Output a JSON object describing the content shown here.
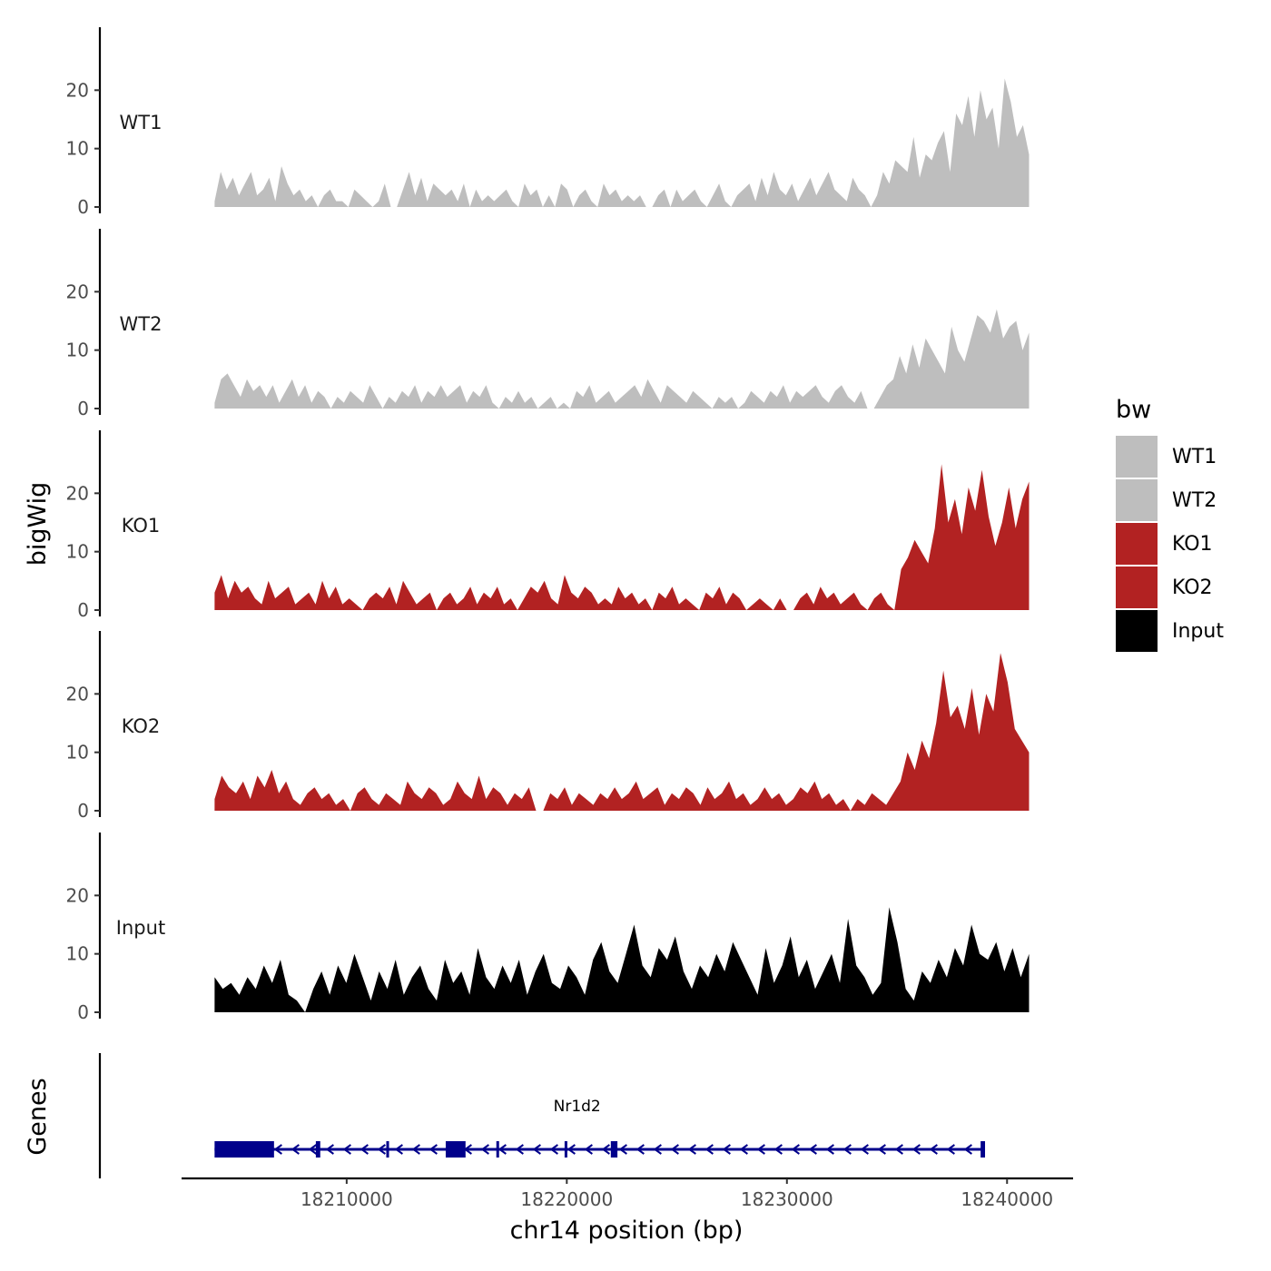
{
  "chart_data": {
    "type": "area",
    "description_free": true,
    "y_axis_title": "bigWig",
    "x_axis_title": "chr14 position (bp)",
    "x_range": [
      18202500,
      18243000
    ],
    "y_range": [
      0,
      30
    ],
    "y_ticks": [
      "0",
      "10",
      "20"
    ],
    "x_ticks": [
      {
        "value": 18210000,
        "label": "18210000"
      },
      {
        "value": 18220000,
        "label": "18220000"
      },
      {
        "value": 18230000,
        "label": "18230000"
      },
      {
        "value": 18240000,
        "label": "18240000"
      }
    ],
    "data_x_start": 18204000,
    "data_x_end": 18241000,
    "legend": {
      "title": "bw",
      "entries": [
        {
          "label": "WT1",
          "color": "#bebebe"
        },
        {
          "label": "WT2",
          "color": "#bebebe"
        },
        {
          "label": "KO1",
          "color": "#b22222"
        },
        {
          "label": "KO2",
          "color": "#b22222"
        },
        {
          "label": "Input",
          "color": "#000000"
        }
      ]
    },
    "series": [
      {
        "name": "WT1",
        "label": "WT1",
        "color": "#bebebe",
        "values": [
          1,
          6,
          3,
          5,
          2,
          4,
          6,
          2,
          3,
          5,
          1,
          7,
          4,
          2,
          3,
          1,
          2,
          0,
          2,
          3,
          1,
          1,
          0,
          3,
          2,
          1,
          0,
          1,
          4,
          0,
          0,
          3,
          6,
          2,
          5,
          1,
          4,
          3,
          2,
          3,
          1,
          4,
          0,
          3,
          1,
          2,
          1,
          2,
          3,
          1,
          0,
          4,
          2,
          3,
          0,
          2,
          0,
          4,
          3,
          0,
          2,
          3,
          1,
          0,
          4,
          2,
          3,
          1,
          2,
          1,
          2,
          0,
          0,
          2,
          3,
          0,
          3,
          1,
          2,
          3,
          1,
          0,
          2,
          4,
          1,
          0,
          2,
          3,
          4,
          1,
          5,
          2,
          6,
          3,
          2,
          4,
          1,
          3,
          5,
          2,
          4,
          6,
          3,
          2,
          1,
          5,
          3,
          2,
          0,
          2,
          6,
          4,
          8,
          7,
          6,
          12,
          5,
          9,
          8,
          11,
          13,
          6,
          16,
          14,
          19,
          12,
          20,
          15,
          17,
          10,
          22,
          18,
          12,
          14,
          9
        ]
      },
      {
        "name": "WT2",
        "label": "WT2",
        "color": "#bebebe",
        "values": [
          1,
          5,
          6,
          4,
          2,
          5,
          3,
          4,
          2,
          4,
          1,
          3,
          5,
          2,
          4,
          1,
          3,
          2,
          0,
          2,
          1,
          3,
          2,
          1,
          4,
          2,
          0,
          2,
          1,
          3,
          2,
          4,
          1,
          3,
          2,
          4,
          2,
          3,
          4,
          1,
          3,
          2,
          4,
          1,
          0,
          2,
          1,
          3,
          1,
          2,
          0,
          1,
          2,
          0,
          1,
          0,
          3,
          2,
          4,
          1,
          2,
          3,
          1,
          2,
          3,
          4,
          2,
          5,
          3,
          1,
          4,
          3,
          2,
          1,
          3,
          2,
          1,
          0,
          2,
          1,
          2,
          0,
          1,
          3,
          2,
          1,
          3,
          2,
          4,
          1,
          3,
          2,
          3,
          4,
          2,
          1,
          3,
          4,
          2,
          1,
          3,
          0,
          0,
          2,
          4,
          5,
          9,
          6,
          11,
          7,
          12,
          10,
          8,
          6,
          14,
          10,
          8,
          12,
          16,
          15,
          13,
          17,
          12,
          14,
          15,
          10,
          13
        ]
      },
      {
        "name": "KO1",
        "label": "KO1",
        "color": "#b22222",
        "values": [
          3,
          6,
          2,
          5,
          3,
          4,
          2,
          1,
          5,
          2,
          3,
          4,
          1,
          2,
          3,
          1,
          5,
          2,
          4,
          1,
          2,
          1,
          0,
          2,
          3,
          2,
          4,
          1,
          5,
          3,
          1,
          2,
          3,
          0,
          2,
          3,
          1,
          2,
          4,
          1,
          3,
          2,
          4,
          1,
          2,
          0,
          2,
          4,
          3,
          5,
          2,
          1,
          6,
          3,
          2,
          4,
          3,
          1,
          2,
          1,
          4,
          2,
          3,
          1,
          2,
          0,
          3,
          2,
          4,
          1,
          2,
          1,
          0,
          3,
          2,
          4,
          1,
          3,
          2,
          0,
          1,
          2,
          1,
          0,
          2,
          0,
          0,
          2,
          3,
          1,
          4,
          2,
          3,
          1,
          2,
          3,
          1,
          0,
          2,
          3,
          1,
          0,
          7,
          9,
          12,
          10,
          8,
          14,
          25,
          15,
          19,
          13,
          21,
          17,
          24,
          16,
          11,
          15,
          21,
          14,
          19,
          22
        ]
      },
      {
        "name": "KO2",
        "label": "KO2",
        "color": "#b22222",
        "values": [
          2,
          6,
          4,
          3,
          5,
          2,
          6,
          4,
          7,
          3,
          5,
          2,
          1,
          3,
          4,
          2,
          3,
          1,
          2,
          0,
          3,
          4,
          2,
          1,
          3,
          2,
          1,
          5,
          3,
          2,
          4,
          3,
          1,
          2,
          5,
          3,
          2,
          6,
          2,
          4,
          3,
          1,
          3,
          2,
          4,
          0,
          0,
          3,
          2,
          4,
          1,
          3,
          2,
          1,
          3,
          2,
          4,
          2,
          3,
          5,
          2,
          3,
          4,
          1,
          3,
          2,
          4,
          3,
          1,
          4,
          2,
          3,
          5,
          2,
          3,
          1,
          2,
          4,
          2,
          3,
          1,
          2,
          4,
          3,
          5,
          2,
          3,
          1,
          2,
          0,
          2,
          1,
          3,
          2,
          1,
          3,
          5,
          10,
          7,
          12,
          9,
          15,
          24,
          16,
          18,
          14,
          21,
          13,
          20,
          17,
          27,
          22,
          14,
          12,
          10
        ]
      },
      {
        "name": "Input",
        "label": "Input",
        "color": "#000000",
        "values": [
          6,
          4,
          5,
          3,
          6,
          4,
          8,
          5,
          9,
          3,
          2,
          0,
          4,
          7,
          3,
          8,
          5,
          10,
          6,
          2,
          7,
          4,
          9,
          3,
          6,
          8,
          4,
          2,
          9,
          5,
          7,
          3,
          11,
          6,
          4,
          8,
          5,
          9,
          3,
          7,
          10,
          5,
          4,
          8,
          6,
          3,
          9,
          12,
          7,
          5,
          10,
          15,
          8,
          6,
          11,
          9,
          13,
          7,
          4,
          8,
          6,
          10,
          7,
          12,
          9,
          6,
          3,
          11,
          5,
          8,
          13,
          6,
          9,
          4,
          7,
          10,
          5,
          16,
          8,
          6,
          3,
          5,
          18,
          12,
          4,
          2,
          7,
          5,
          9,
          6,
          11,
          8,
          15,
          10,
          9,
          12,
          7,
          11,
          6,
          10
        ]
      }
    ],
    "genes": {
      "panel_title": "Genes",
      "items": [
        {
          "name": "Nr1d2",
          "start": 18204000,
          "end": 18239000,
          "strand": "-",
          "exons": [
            [
              18204000,
              18206700
            ],
            [
              18208600,
              18208800
            ],
            [
              18211800,
              18211900
            ],
            [
              18214500,
              18215400
            ],
            [
              18216800,
              18216900
            ],
            [
              18219900,
              18220000
            ],
            [
              18222000,
              18222300
            ],
            [
              18238800,
              18239000
            ]
          ]
        }
      ]
    }
  }
}
